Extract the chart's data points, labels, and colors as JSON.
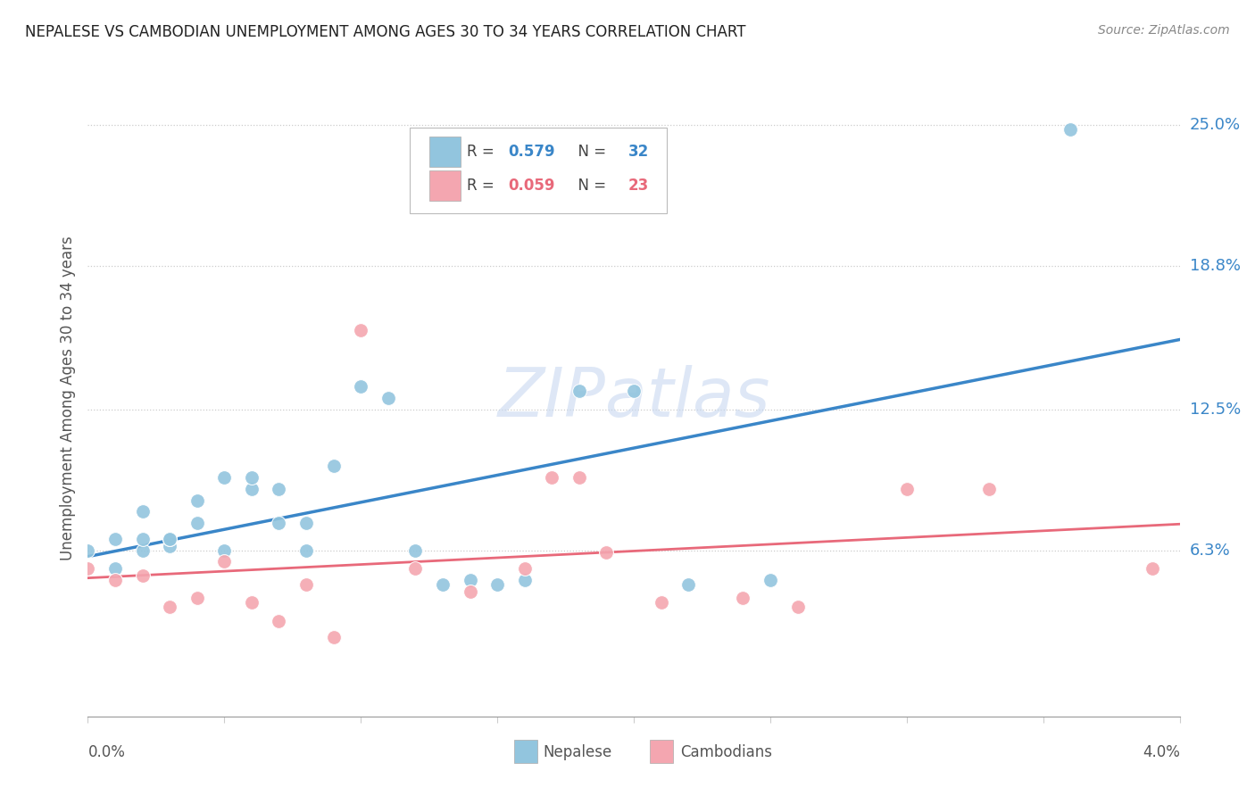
{
  "title": "NEPALESE VS CAMBODIAN UNEMPLOYMENT AMONG AGES 30 TO 34 YEARS CORRELATION CHART",
  "source": "Source: ZipAtlas.com",
  "ylabel": "Unemployment Among Ages 30 to 34 years",
  "ytick_labels": [
    "6.3%",
    "12.5%",
    "18.8%",
    "25.0%"
  ],
  "ytick_values": [
    0.063,
    0.125,
    0.188,
    0.25
  ],
  "xlim": [
    0.0,
    0.04
  ],
  "ylim": [
    -0.01,
    0.27
  ],
  "legend_r1": "0.579",
  "legend_n1": "32",
  "legend_r2": "0.059",
  "legend_n2": "23",
  "watermark": "ZIPatlas",
  "nepalese_color": "#92c5de",
  "cambodian_color": "#f4a6b0",
  "nepalese_line_color": "#3a86c8",
  "cambodian_line_color": "#e8697a",
  "nepalese_x": [
    0.0,
    0.001,
    0.001,
    0.002,
    0.002,
    0.002,
    0.003,
    0.003,
    0.003,
    0.004,
    0.004,
    0.005,
    0.005,
    0.006,
    0.006,
    0.007,
    0.007,
    0.008,
    0.008,
    0.009,
    0.01,
    0.011,
    0.012,
    0.013,
    0.014,
    0.015,
    0.016,
    0.018,
    0.02,
    0.022,
    0.025,
    0.036
  ],
  "nepalese_y": [
    0.063,
    0.068,
    0.055,
    0.063,
    0.068,
    0.08,
    0.065,
    0.068,
    0.068,
    0.075,
    0.085,
    0.063,
    0.095,
    0.09,
    0.095,
    0.075,
    0.09,
    0.063,
    0.075,
    0.1,
    0.135,
    0.13,
    0.063,
    0.048,
    0.05,
    0.048,
    0.05,
    0.133,
    0.133,
    0.048,
    0.05,
    0.248
  ],
  "cambodian_x": [
    0.0,
    0.001,
    0.002,
    0.003,
    0.004,
    0.005,
    0.006,
    0.007,
    0.008,
    0.009,
    0.01,
    0.012,
    0.014,
    0.016,
    0.017,
    0.018,
    0.019,
    0.021,
    0.024,
    0.026,
    0.03,
    0.033,
    0.039
  ],
  "cambodian_y": [
    0.055,
    0.05,
    0.052,
    0.038,
    0.042,
    0.058,
    0.04,
    0.032,
    0.048,
    0.025,
    0.16,
    0.055,
    0.045,
    0.055,
    0.095,
    0.095,
    0.062,
    0.04,
    0.042,
    0.038,
    0.09,
    0.09,
    0.055
  ]
}
